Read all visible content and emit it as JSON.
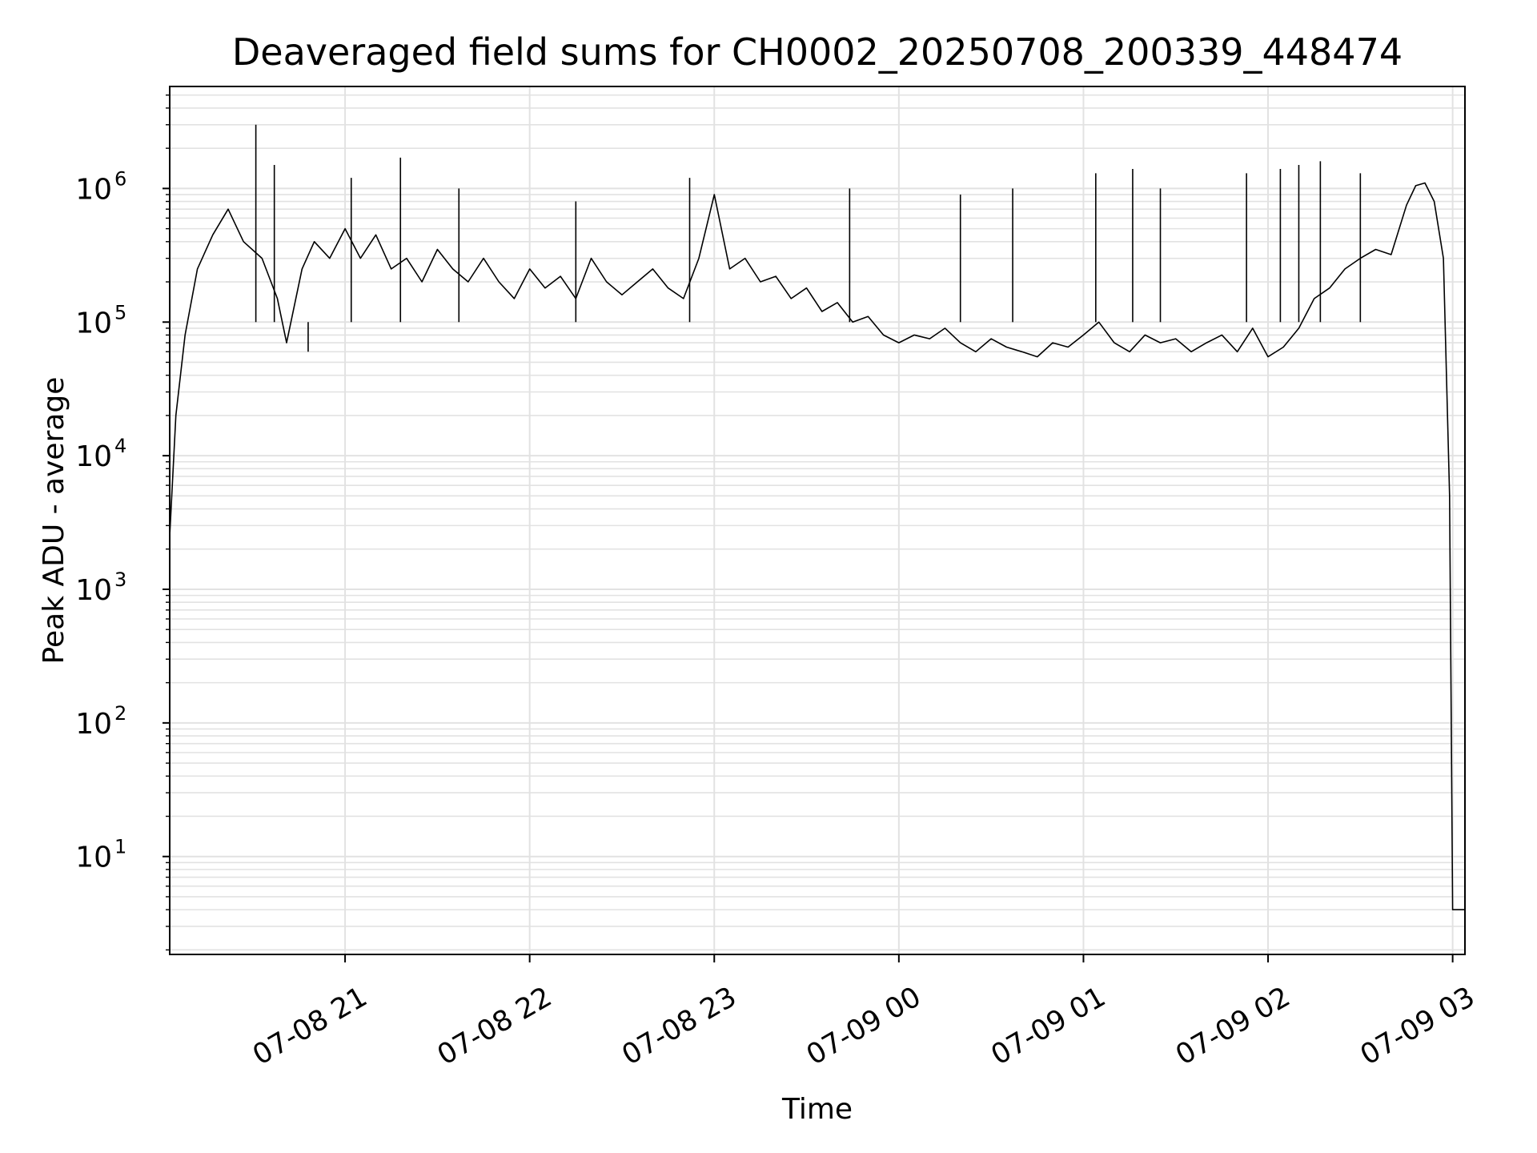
{
  "chart_data": {
    "type": "line",
    "title": "Deaveraged field sums for CH0002_20250708_200339_448474",
    "xlabel": "Time",
    "ylabel": "Peak ADU - average",
    "y_scale": "log",
    "ylim": [
      1.85,
      5800000
    ],
    "xlim": [
      "2025-07-08 20:03",
      "2025-07-09 03:04"
    ],
    "grid": true,
    "grid_minor": true,
    "line_color": "#000000",
    "y_ticks": [
      {
        "base": "10",
        "exp": "1"
      },
      {
        "base": "10",
        "exp": "2"
      },
      {
        "base": "10",
        "exp": "3"
      },
      {
        "base": "10",
        "exp": "4"
      },
      {
        "base": "10",
        "exp": "5"
      },
      {
        "base": "10",
        "exp": "6"
      }
    ],
    "x_tick_labels": [
      "07-08 21",
      "07-08 22",
      "07-08 23",
      "07-09 00",
      "07-09 01",
      "07-09 02",
      "07-09 03"
    ],
    "series": [
      {
        "x": [
          "2025-07-08 20:03",
          "2025-07-08 20:05",
          "2025-07-08 20:08",
          "2025-07-08 20:12",
          "2025-07-08 20:17",
          "2025-07-08 20:22",
          "2025-07-08 20:27",
          "2025-07-08 20:33",
          "2025-07-08 20:38",
          "2025-07-08 20:41",
          "2025-07-08 20:46",
          "2025-07-08 20:50",
          "2025-07-08 20:55",
          "2025-07-08 21:00",
          "2025-07-08 21:05",
          "2025-07-08 21:10",
          "2025-07-08 21:15",
          "2025-07-08 21:20",
          "2025-07-08 21:25",
          "2025-07-08 21:30",
          "2025-07-08 21:35",
          "2025-07-08 21:40",
          "2025-07-08 21:45",
          "2025-07-08 21:50",
          "2025-07-08 21:55",
          "2025-07-08 22:00",
          "2025-07-08 22:05",
          "2025-07-08 22:10",
          "2025-07-08 22:15",
          "2025-07-08 22:20",
          "2025-07-08 22:25",
          "2025-07-08 22:30",
          "2025-07-08 22:35",
          "2025-07-08 22:40",
          "2025-07-08 22:45",
          "2025-07-08 22:50",
          "2025-07-08 22:55",
          "2025-07-08 23:00",
          "2025-07-08 23:05",
          "2025-07-08 23:10",
          "2025-07-08 23:15",
          "2025-07-08 23:20",
          "2025-07-08 23:25",
          "2025-07-08 23:30",
          "2025-07-08 23:35",
          "2025-07-08 23:40",
          "2025-07-08 23:45",
          "2025-07-08 23:50",
          "2025-07-08 23:55",
          "2025-07-09 00:00",
          "2025-07-09 00:05",
          "2025-07-09 00:10",
          "2025-07-09 00:15",
          "2025-07-09 00:20",
          "2025-07-09 00:25",
          "2025-07-09 00:30",
          "2025-07-09 00:35",
          "2025-07-09 00:40",
          "2025-07-09 00:45",
          "2025-07-09 00:50",
          "2025-07-09 00:55",
          "2025-07-09 01:00",
          "2025-07-09 01:05",
          "2025-07-09 01:10",
          "2025-07-09 01:15",
          "2025-07-09 01:20",
          "2025-07-09 01:25",
          "2025-07-09 01:30",
          "2025-07-09 01:35",
          "2025-07-09 01:40",
          "2025-07-09 01:45",
          "2025-07-09 01:50",
          "2025-07-09 01:55",
          "2025-07-09 02:00",
          "2025-07-09 02:05",
          "2025-07-09 02:10",
          "2025-07-09 02:15",
          "2025-07-09 02:20",
          "2025-07-09 02:25",
          "2025-07-09 02:30",
          "2025-07-09 02:35",
          "2025-07-09 02:40",
          "2025-07-09 02:45",
          "2025-07-09 02:48",
          "2025-07-09 02:51",
          "2025-07-09 02:54",
          "2025-07-09 02:57",
          "2025-07-09 02:59",
          "2025-07-09 03:00",
          "2025-07-09 03:02",
          "2025-07-09 03:04"
        ],
        "y": [
          2500,
          20000,
          80000,
          250000,
          450000,
          700000,
          400000,
          300000,
          150000,
          70000,
          250000,
          400000,
          300000,
          500000,
          300000,
          450000,
          250000,
          300000,
          200000,
          350000,
          250000,
          200000,
          300000,
          200000,
          150000,
          250000,
          180000,
          220000,
          150000,
          300000,
          200000,
          160000,
          200000,
          250000,
          180000,
          150000,
          300000,
          900000,
          250000,
          300000,
          200000,
          220000,
          150000,
          180000,
          120000,
          140000,
          100000,
          110000,
          80000,
          70000,
          80000,
          75000,
          90000,
          70000,
          60000,
          75000,
          65000,
          60000,
          55000,
          70000,
          65000,
          80000,
          100000,
          70000,
          60000,
          80000,
          70000,
          75000,
          60000,
          70000,
          80000,
          60000,
          90000,
          55000,
          65000,
          90000,
          150000,
          180000,
          250000,
          300000,
          350000,
          320000,
          750000,
          1050000,
          1100000,
          800000,
          300000,
          5000,
          4,
          4,
          4
        ]
      },
      {
        "x": [
          "2025-07-08 20:31",
          "2025-07-08 20:37",
          "2025-07-08 20:48",
          "2025-07-08 21:02",
          "2025-07-08 21:18",
          "2025-07-08 21:37",
          "2025-07-08 22:15",
          "2025-07-08 22:52",
          "2025-07-08 23:44",
          "2025-07-09 00:20",
          "2025-07-09 00:37",
          "2025-07-09 01:04",
          "2025-07-09 01:16",
          "2025-07-09 01:25",
          "2025-07-09 01:53",
          "2025-07-09 02:04",
          "2025-07-09 02:10",
          "2025-07-09 02:17",
          "2025-07-09 02:30"
        ],
        "y": [
          3000000,
          1500000,
          60000,
          1200000,
          1700000,
          1000000,
          800000,
          1200000,
          1000000,
          900000,
          1000000,
          1300000,
          1400000,
          1000000,
          1300000,
          1400000,
          1500000,
          1600000,
          1300000
        ]
      }
    ]
  }
}
